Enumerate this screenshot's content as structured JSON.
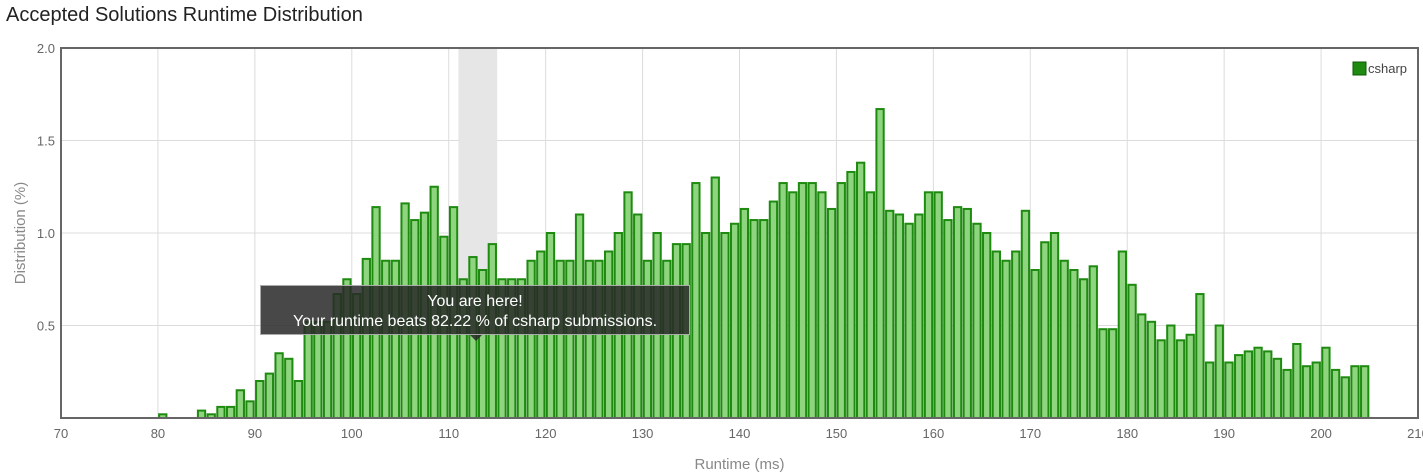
{
  "page_title": "Accepted Solutions Runtime Distribution",
  "chart_data": {
    "type": "bar",
    "xlabel": "Runtime (ms)",
    "ylabel": "Distribution (%)",
    "xlim": [
      70,
      210
    ],
    "ylim": [
      0,
      2.0
    ],
    "x_ticks": [
      70,
      80,
      90,
      100,
      110,
      120,
      130,
      140,
      150,
      160,
      170,
      180,
      190,
      200,
      210
    ],
    "y_ticks": [
      0.5,
      1.0,
      1.5,
      2.0
    ],
    "y_tick_labels": [
      "0.5",
      "1.0",
      "1.5",
      "2.0"
    ],
    "grid": true,
    "legend": {
      "position": "top-right",
      "entries": [
        "csharp"
      ]
    },
    "highlight_range": [
      111,
      115
    ],
    "bar_color": "#8fd47e",
    "bar_border_color": "#1e8a10",
    "series": [
      {
        "name": "csharp",
        "x": [
          80,
          81,
          82,
          83,
          84,
          85,
          86,
          87,
          88,
          89,
          90,
          91,
          92,
          93,
          94,
          95,
          96,
          97,
          98,
          99,
          100,
          101,
          102,
          103,
          104,
          105,
          106,
          107,
          108,
          109,
          110,
          111,
          112,
          113,
          114,
          115,
          116,
          117,
          118,
          119,
          120,
          121,
          122,
          123,
          124,
          125,
          126,
          127,
          128,
          129,
          130,
          131,
          132,
          133,
          134,
          135,
          136,
          137,
          138,
          139,
          140,
          141,
          142,
          143,
          144,
          145,
          146,
          147,
          148,
          149,
          150,
          151,
          152,
          153,
          154,
          155,
          156,
          157,
          158,
          159,
          160,
          161,
          162,
          163,
          164,
          165,
          166,
          167,
          168,
          169,
          170,
          171,
          172,
          173,
          174,
          175,
          176,
          177,
          178,
          179,
          180,
          181,
          182,
          183,
          184,
          185,
          186,
          187,
          188,
          189,
          190,
          191,
          192,
          193,
          194,
          195,
          196,
          197,
          198,
          199,
          200,
          201,
          202,
          203,
          204
        ],
        "values": [
          0.02,
          0,
          0,
          0,
          0.04,
          0.02,
          0.06,
          0.06,
          0.15,
          0.09,
          0.2,
          0.24,
          0.35,
          0.32,
          0.2,
          0.52,
          0.52,
          0.52,
          0.67,
          0.75,
          0.67,
          0.86,
          1.14,
          0.85,
          0.85,
          1.16,
          1.07,
          1.11,
          1.25,
          0.98,
          1.14,
          0.75,
          0.87,
          0.8,
          0.94,
          0.75,
          0.75,
          0.75,
          0.85,
          0.9,
          1.0,
          0.85,
          0.85,
          1.1,
          0.85,
          0.85,
          0.9,
          1.0,
          1.22,
          1.1,
          0.85,
          1.0,
          0.85,
          0.94,
          0.94,
          1.27,
          1.0,
          1.3,
          1.0,
          1.05,
          1.13,
          1.07,
          1.07,
          1.17,
          1.27,
          1.22,
          1.27,
          1.27,
          1.22,
          1.13,
          1.27,
          1.33,
          1.38,
          1.22,
          1.67,
          1.12,
          1.1,
          1.05,
          1.1,
          1.22,
          1.22,
          1.07,
          1.14,
          1.13,
          1.05,
          1.0,
          0.9,
          0.85,
          0.9,
          1.12,
          0.8,
          0.95,
          1.0,
          0.85,
          0.8,
          0.75,
          0.82,
          0.48,
          0.48,
          0.9,
          0.72,
          0.56,
          0.52,
          0.42,
          0.5,
          0.42,
          0.45,
          0.67,
          0.3,
          0.5,
          0.3,
          0.34,
          0.36,
          0.38,
          0.36,
          0.32,
          0.26,
          0.4,
          0.28,
          0.3,
          0.38,
          0.26,
          0.22,
          0.28,
          0.28
        ]
      }
    ],
    "tooltip": {
      "line1": "You are here!",
      "line2": "Your runtime beats 82.22 % of csharp submissions."
    }
  }
}
